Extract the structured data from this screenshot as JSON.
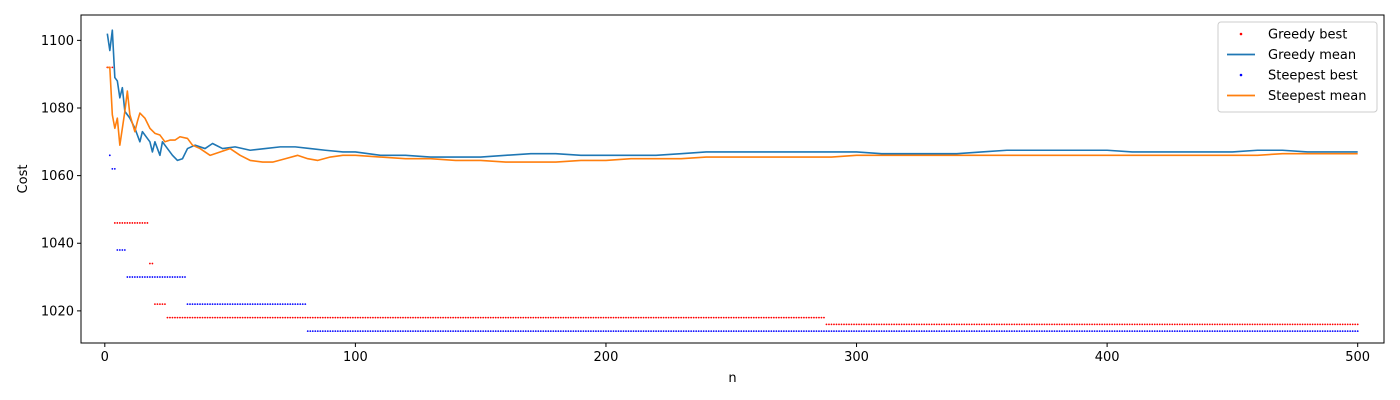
{
  "chart_data": {
    "type": "line",
    "xlabel": "n",
    "ylabel": "Cost",
    "xlim": [
      -9.5,
      510.5
    ],
    "ylim": [
      1010.5,
      1107.5
    ],
    "xticks": [
      0,
      100,
      200,
      300,
      400,
      500
    ],
    "yticks": [
      1020,
      1040,
      1060,
      1080,
      1100
    ],
    "legend_position": "top-right",
    "grid": false,
    "series": [
      {
        "name": "Greedy best",
        "kind": "points",
        "color": "#ff0000",
        "steps": [
          [
            1,
            1092
          ],
          [
            4,
            1046
          ],
          [
            18,
            1034
          ],
          [
            20,
            1022
          ],
          [
            25,
            1018
          ],
          [
            288,
            1016
          ]
        ],
        "x_end": 500
      },
      {
        "name": "Greedy mean",
        "kind": "line",
        "color": "#1f77b4",
        "points": [
          [
            1,
            1102
          ],
          [
            2,
            1097
          ],
          [
            3,
            1103
          ],
          [
            4,
            1089
          ],
          [
            5,
            1088
          ],
          [
            6,
            1083
          ],
          [
            7,
            1086
          ],
          [
            8,
            1079
          ],
          [
            10,
            1077
          ],
          [
            12,
            1074
          ],
          [
            14,
            1070
          ],
          [
            15,
            1073
          ],
          [
            17,
            1071
          ],
          [
            18,
            1070
          ],
          [
            19,
            1067
          ],
          [
            20,
            1070
          ],
          [
            22,
            1066
          ],
          [
            23,
            1070
          ],
          [
            25,
            1068
          ],
          [
            27,
            1066
          ],
          [
            29,
            1064.5
          ],
          [
            31,
            1065
          ],
          [
            33,
            1068
          ],
          [
            36,
            1069
          ],
          [
            40,
            1068
          ],
          [
            43,
            1069.5
          ],
          [
            47,
            1068
          ],
          [
            52,
            1068.5
          ],
          [
            58,
            1067.5
          ],
          [
            64,
            1068
          ],
          [
            70,
            1068.5
          ],
          [
            76,
            1068.5
          ],
          [
            82,
            1068
          ],
          [
            88,
            1067.5
          ],
          [
            95,
            1067
          ],
          [
            100,
            1067
          ],
          [
            110,
            1066
          ],
          [
            120,
            1066
          ],
          [
            130,
            1065.5
          ],
          [
            140,
            1065.5
          ],
          [
            150,
            1065.5
          ],
          [
            160,
            1066
          ],
          [
            170,
            1066.5
          ],
          [
            180,
            1066.5
          ],
          [
            190,
            1066
          ],
          [
            200,
            1066
          ],
          [
            210,
            1066
          ],
          [
            220,
            1066
          ],
          [
            230,
            1066.5
          ],
          [
            240,
            1067
          ],
          [
            250,
            1067
          ],
          [
            260,
            1067
          ],
          [
            270,
            1067
          ],
          [
            280,
            1067
          ],
          [
            290,
            1067
          ],
          [
            300,
            1067
          ],
          [
            310,
            1066.5
          ],
          [
            320,
            1066.5
          ],
          [
            330,
            1066.5
          ],
          [
            340,
            1066.5
          ],
          [
            350,
            1067
          ],
          [
            360,
            1067.5
          ],
          [
            370,
            1067.5
          ],
          [
            380,
            1067.5
          ],
          [
            390,
            1067.5
          ],
          [
            400,
            1067.5
          ],
          [
            410,
            1067
          ],
          [
            420,
            1067
          ],
          [
            430,
            1067
          ],
          [
            440,
            1067
          ],
          [
            450,
            1067
          ],
          [
            460,
            1067.5
          ],
          [
            470,
            1067.5
          ],
          [
            480,
            1067
          ],
          [
            490,
            1067
          ],
          [
            500,
            1067
          ]
        ]
      },
      {
        "name": "Steepest best",
        "kind": "points",
        "color": "#0000ff",
        "steps": [
          [
            2,
            1066
          ],
          [
            3,
            1062
          ],
          [
            5,
            1038
          ],
          [
            9,
            1030
          ],
          [
            33,
            1022
          ],
          [
            81,
            1014
          ]
        ],
        "x_end": 500
      },
      {
        "name": "Steepest mean",
        "kind": "line",
        "color": "#ff7f0e",
        "points": [
          [
            1,
            1092
          ],
          [
            2,
            1092
          ],
          [
            3,
            1078
          ],
          [
            4,
            1074
          ],
          [
            5,
            1077
          ],
          [
            6,
            1069
          ],
          [
            7,
            1074
          ],
          [
            8,
            1079
          ],
          [
            9,
            1085
          ],
          [
            10,
            1078
          ],
          [
            12,
            1073
          ],
          [
            13,
            1076
          ],
          [
            14,
            1078.5
          ],
          [
            16,
            1077
          ],
          [
            18,
            1074
          ],
          [
            20,
            1072.5
          ],
          [
            22,
            1072
          ],
          [
            24,
            1070
          ],
          [
            26,
            1070.5
          ],
          [
            28,
            1070.5
          ],
          [
            30,
            1071.5
          ],
          [
            33,
            1071
          ],
          [
            35,
            1069
          ],
          [
            38,
            1068
          ],
          [
            42,
            1066
          ],
          [
            46,
            1067
          ],
          [
            50,
            1068
          ],
          [
            54,
            1066
          ],
          [
            58,
            1064.5
          ],
          [
            63,
            1064
          ],
          [
            67,
            1064
          ],
          [
            72,
            1065
          ],
          [
            77,
            1066
          ],
          [
            81,
            1065
          ],
          [
            85,
            1064.5
          ],
          [
            90,
            1065.5
          ],
          [
            95,
            1066
          ],
          [
            100,
            1066
          ],
          [
            110,
            1065.5
          ],
          [
            120,
            1065
          ],
          [
            130,
            1065
          ],
          [
            140,
            1064.5
          ],
          [
            150,
            1064.5
          ],
          [
            160,
            1064
          ],
          [
            170,
            1064
          ],
          [
            180,
            1064
          ],
          [
            190,
            1064.5
          ],
          [
            200,
            1064.5
          ],
          [
            210,
            1065
          ],
          [
            220,
            1065
          ],
          [
            230,
            1065
          ],
          [
            240,
            1065.5
          ],
          [
            250,
            1065.5
          ],
          [
            260,
            1065.5
          ],
          [
            270,
            1065.5
          ],
          [
            280,
            1065.5
          ],
          [
            290,
            1065.5
          ],
          [
            300,
            1066
          ],
          [
            310,
            1066
          ],
          [
            320,
            1066
          ],
          [
            330,
            1066
          ],
          [
            340,
            1066
          ],
          [
            350,
            1066
          ],
          [
            360,
            1066
          ],
          [
            370,
            1066
          ],
          [
            380,
            1066
          ],
          [
            390,
            1066
          ],
          [
            400,
            1066
          ],
          [
            410,
            1066
          ],
          [
            420,
            1066
          ],
          [
            430,
            1066
          ],
          [
            440,
            1066
          ],
          [
            450,
            1066
          ],
          [
            460,
            1066
          ],
          [
            470,
            1066.5
          ],
          [
            480,
            1066.5
          ],
          [
            490,
            1066.5
          ],
          [
            500,
            1066.5
          ]
        ]
      }
    ]
  }
}
